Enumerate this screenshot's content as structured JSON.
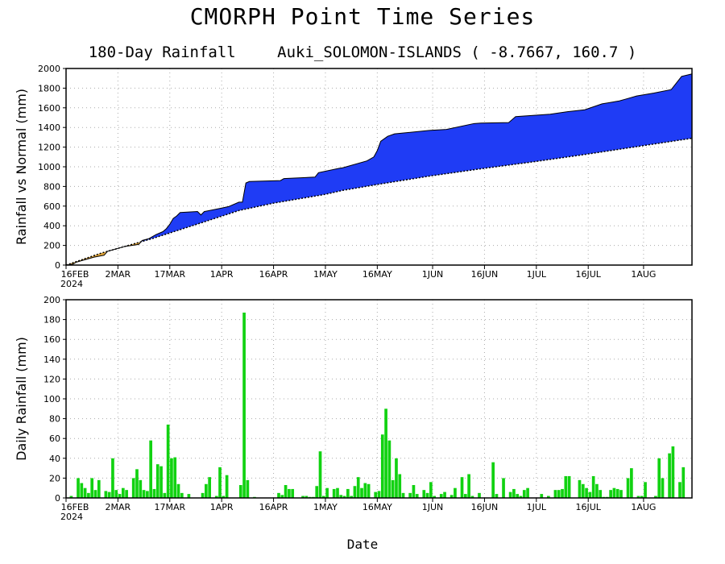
{
  "title": "CMORPH Point Time Series",
  "subtitle_left": "180-Day Rainfall",
  "subtitle_right": "Auki_SOLOMON-ISLANDS ( -8.7667, 160.7 )",
  "xlabel": "Date",
  "chart_data": [
    {
      "type": "area",
      "name": "cumulative",
      "ylabel": "Rainfall vs Normal (mm)",
      "ylim": [
        0,
        2000
      ],
      "yticks": [
        0,
        200,
        400,
        600,
        800,
        1000,
        1200,
        1400,
        1600,
        1800,
        2000
      ],
      "xlim": [
        0,
        181
      ],
      "xticks": [
        {
          "day": 0,
          "label": "16FEB",
          "label2": "2024"
        },
        {
          "day": 15,
          "label": "2MAR"
        },
        {
          "day": 30,
          "label": "17MAR"
        },
        {
          "day": 45,
          "label": "1APR"
        },
        {
          "day": 60,
          "label": "16APR"
        },
        {
          "day": 75,
          "label": "1MAY"
        },
        {
          "day": 90,
          "label": "16MAY"
        },
        {
          "day": 106,
          "label": "1JUN"
        },
        {
          "day": 121,
          "label": "16JUN"
        },
        {
          "day": 136,
          "label": "1JUL"
        },
        {
          "day": 151,
          "label": "16JUL"
        },
        {
          "day": 167,
          "label": "1AUG"
        }
      ],
      "grid": true,
      "colors": {
        "above_normal": "#1f3cf5",
        "below_normal": "#e3a73a"
      },
      "normal": [
        [
          0,
          0
        ],
        [
          10,
          120
        ],
        [
          25,
          270
        ],
        [
          40,
          440
        ],
        [
          50,
          555
        ],
        [
          60,
          630
        ],
        [
          75,
          720
        ],
        [
          80,
          760
        ],
        [
          90,
          820
        ],
        [
          105,
          905
        ],
        [
          120,
          980
        ],
        [
          135,
          1050
        ],
        [
          150,
          1125
        ],
        [
          165,
          1205
        ],
        [
          181,
          1290
        ]
      ],
      "actual": [
        [
          0,
          0
        ],
        [
          2,
          10
        ],
        [
          3,
          30
        ],
        [
          5,
          50
        ],
        [
          7,
          70
        ],
        [
          8,
          80
        ],
        [
          11,
          100
        ],
        [
          12,
          140
        ],
        [
          14,
          160
        ],
        [
          17,
          190
        ],
        [
          19,
          200
        ],
        [
          21,
          210
        ],
        [
          22,
          250
        ],
        [
          24,
          270
        ],
        [
          26,
          310
        ],
        [
          28,
          340
        ],
        [
          29,
          370
        ],
        [
          30,
          415
        ],
        [
          31,
          475
        ],
        [
          32,
          500
        ],
        [
          33,
          535
        ],
        [
          38,
          545
        ],
        [
          39,
          510
        ],
        [
          40,
          545
        ],
        [
          45,
          580
        ],
        [
          47,
          595
        ],
        [
          50,
          640
        ],
        [
          51,
          640
        ],
        [
          52,
          835
        ],
        [
          53,
          850
        ],
        [
          62,
          860
        ],
        [
          63,
          880
        ],
        [
          72,
          895
        ],
        [
          73,
          940
        ],
        [
          79,
          985
        ],
        [
          80,
          990
        ],
        [
          87,
          1060
        ],
        [
          89,
          1100
        ],
        [
          90,
          1165
        ],
        [
          91,
          1260
        ],
        [
          93,
          1310
        ],
        [
          95,
          1335
        ],
        [
          105,
          1370
        ],
        [
          110,
          1380
        ],
        [
          118,
          1440
        ],
        [
          120,
          1445
        ],
        [
          128,
          1450
        ],
        [
          130,
          1510
        ],
        [
          140,
          1535
        ],
        [
          145,
          1560
        ],
        [
          150,
          1580
        ],
        [
          155,
          1640
        ],
        [
          160,
          1670
        ],
        [
          162,
          1690
        ],
        [
          165,
          1720
        ],
        [
          170,
          1750
        ],
        [
          175,
          1785
        ],
        [
          178,
          1920
        ],
        [
          181,
          1945
        ]
      ]
    },
    {
      "type": "bar",
      "name": "daily",
      "ylabel": "Daily Rainfall (mm)",
      "ylim": [
        0,
        200
      ],
      "yticks": [
        0,
        20,
        40,
        60,
        80,
        100,
        120,
        140,
        160,
        180,
        200
      ],
      "xlim": [
        0,
        181
      ],
      "xticks": [
        {
          "day": 0,
          "label": "16FEB",
          "label2": "2024"
        },
        {
          "day": 15,
          "label": "2MAR"
        },
        {
          "day": 30,
          "label": "17MAR"
        },
        {
          "day": 45,
          "label": "1APR"
        },
        {
          "day": 60,
          "label": "16APR"
        },
        {
          "day": 75,
          "label": "1MAY"
        },
        {
          "day": 90,
          "label": "16MAY"
        },
        {
          "day": 106,
          "label": "1JUN"
        },
        {
          "day": 121,
          "label": "16JUN"
        },
        {
          "day": 136,
          "label": "1JUL"
        },
        {
          "day": 151,
          "label": "16JUL"
        },
        {
          "day": 167,
          "label": "1AUG"
        }
      ],
      "grid": true,
      "color": "#11d211",
      "values": [
        0,
        2,
        0,
        20,
        15,
        10,
        5,
        20,
        8,
        18,
        0,
        7,
        6,
        40,
        8,
        4,
        10,
        8,
        0,
        20,
        29,
        18,
        8,
        7,
        58,
        9,
        34,
        32,
        5,
        74,
        40,
        41,
        14,
        5,
        0,
        4,
        0,
        0,
        0,
        5,
        14,
        21,
        0,
        2,
        31,
        2,
        23,
        0,
        0,
        0,
        13,
        187,
        18,
        0,
        1,
        0,
        0,
        0,
        0,
        0,
        0,
        5,
        3,
        13,
        9,
        9,
        0,
        0,
        2,
        2,
        1,
        1,
        12,
        47,
        2,
        10,
        0,
        9,
        10,
        3,
        2,
        9,
        2,
        12,
        21,
        10,
        15,
        14,
        0,
        6,
        7,
        64,
        90,
        58,
        18,
        40,
        24,
        5,
        0,
        5,
        13,
        4,
        0,
        8,
        5,
        16,
        2,
        0,
        4,
        6,
        0,
        3,
        10,
        0,
        21,
        4,
        24,
        2,
        0,
        5,
        0,
        0,
        0,
        36,
        4,
        0,
        20,
        0,
        6,
        9,
        4,
        2,
        8,
        10,
        0,
        0,
        0,
        4,
        0,
        2,
        0,
        8,
        8,
        9,
        22,
        22,
        0,
        0,
        18,
        14,
        10,
        6,
        22,
        14,
        8,
        1,
        1,
        8,
        10,
        9,
        8,
        0,
        20,
        30,
        0,
        2,
        2,
        16,
        0,
        0,
        2,
        40,
        20,
        0,
        45,
        52,
        0,
        16,
        31
      ]
    }
  ]
}
